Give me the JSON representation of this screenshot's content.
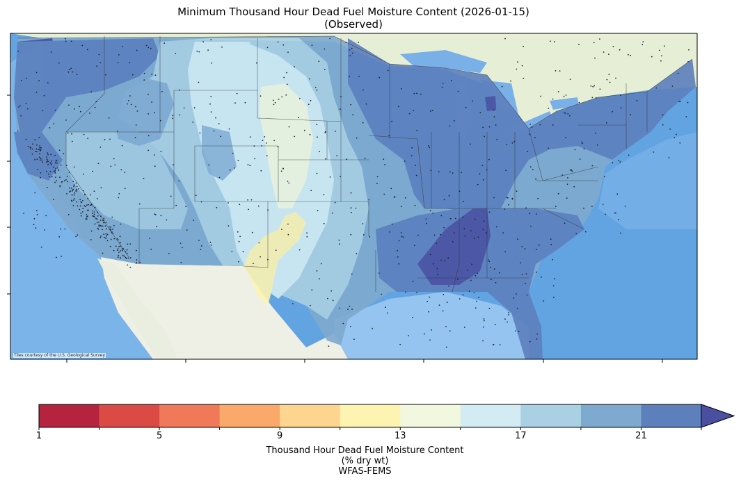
{
  "title": {
    "line1": "Minimum Thousand Hour Dead Fuel Moisture Content (2026-01-15)",
    "line2": "(Observed)"
  },
  "map": {
    "attribution": "Tiles courtesy of the U.S. Geological Survey",
    "ocean_color": "#5fa0e0",
    "land_color": "#eef1ea"
  },
  "colorbar": {
    "tick_labels": [
      "1",
      "5",
      "9",
      "13",
      "17",
      "21"
    ],
    "tick_values": [
      1,
      5,
      9,
      13,
      17,
      21
    ],
    "range": [
      1,
      24
    ],
    "bin_edges": [
      1,
      3,
      5,
      7,
      9,
      11,
      13,
      15,
      17,
      19,
      21,
      23
    ],
    "colors": [
      "#b5233f",
      "#dc4a45",
      "#f0795a",
      "#fba96b",
      "#fdd58f",
      "#fef4b2",
      "#f2f8df",
      "#d3ecf3",
      "#a9d0e3",
      "#7faacf",
      "#5d80bd"
    ],
    "extend_color": "#4a4fa0",
    "extend": "max",
    "label_line1": "Thousand Hour Dead Fuel Moisture Content",
    "label_line2": "(% dry wt)",
    "label_line3": "WFAS-FEMS"
  }
}
